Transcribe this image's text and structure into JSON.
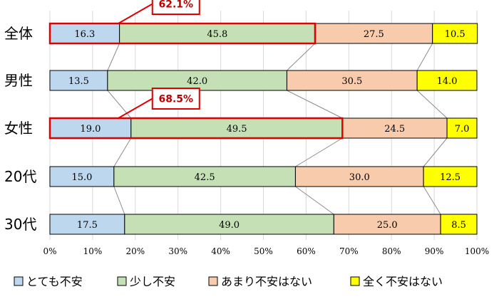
{
  "chart_data": {
    "type": "bar",
    "orientation": "horizontal",
    "stacked": true,
    "percent": true,
    "categories": [
      "全体",
      "男性",
      "女性",
      "20代",
      "30代"
    ],
    "series": [
      {
        "name": "とても不安",
        "color": "#bdd7ee",
        "values": [
          16.3,
          13.5,
          19.0,
          15.0,
          17.5
        ]
      },
      {
        "name": "少し不安",
        "color": "#c5e0b4",
        "values": [
          45.8,
          42.0,
          49.5,
          42.5,
          49.0
        ]
      },
      {
        "name": "あまり不安はない",
        "color": "#f8cbad",
        "values": [
          27.5,
          30.5,
          24.5,
          30.0,
          25.0
        ]
      },
      {
        "name": "全く不安はない",
        "color": "#ffff00",
        "values": [
          10.5,
          14.0,
          7.0,
          12.5,
          8.5
        ]
      }
    ],
    "value_labels": [
      [
        "16.3",
        "45.8",
        "27.5",
        "10.5"
      ],
      [
        "13.5",
        "42.0",
        "30.5",
        "14.0"
      ],
      [
        "19.0",
        "49.5",
        "24.5",
        "7.0"
      ],
      [
        "15.0",
        "42.5",
        "30.0",
        "12.5"
      ],
      [
        "17.5",
        "49.0",
        "25.0",
        "8.5"
      ]
    ],
    "xlim": [
      0,
      100
    ],
    "x_ticks": [
      "0%",
      "10%",
      "20%",
      "30%",
      "40%",
      "50%",
      "60%",
      "70%",
      "80%",
      "90%",
      "100%"
    ],
    "grid": "vertical",
    "legend": "bottom",
    "series_lines": true,
    "callouts": [
      {
        "category": "全体",
        "text": "62.1%",
        "value": 62.1
      },
      {
        "category": "女性",
        "text": "68.5%",
        "value": 68.5
      }
    ],
    "highlight_color": "#e00000",
    "grid_color": "#d9d9d9",
    "connector_color": "#8c8c8c"
  }
}
